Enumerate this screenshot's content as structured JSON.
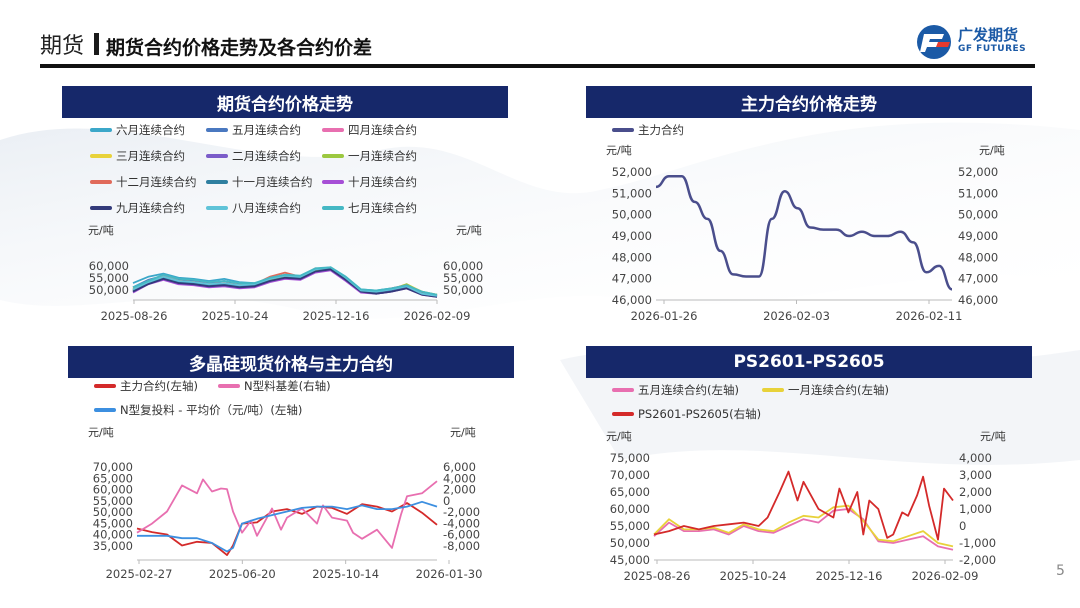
{
  "header": {
    "section": "期货",
    "title": "期货合约价格走势及各合约价差",
    "logo_cn": "广发期货",
    "logo_en": "GF FUTURES"
  },
  "page_number": "5",
  "colors": {
    "navy": "#16286a",
    "logo_blue": "#1b5aa6",
    "logo_red": "#e63a2e"
  },
  "chart_data": [
    {
      "id": "c1",
      "type": "line",
      "title": "期货合约价格走势",
      "ylabel_left": "元/吨",
      "ylabel_right": "元/吨",
      "x_ticks": [
        "2025-08-26",
        "2025-10-24",
        "2025-12-16",
        "2026-02-09"
      ],
      "y_ticks": [
        "60,000",
        "55,000",
        "50,000"
      ],
      "y_ticks_right": [
        "60,000",
        "55,000",
        "50,000"
      ],
      "ylim": [
        46000,
        64000
      ],
      "x": [
        0,
        5,
        10,
        15,
        20,
        25,
        30,
        35,
        40,
        45,
        50,
        55,
        60,
        65,
        70,
        75,
        80,
        85,
        90,
        95,
        100
      ],
      "legend": "top",
      "series": [
        {
          "name": "六月连续合约",
          "color": "#3ba7c9",
          "values": [
            54000,
            57000,
            58500,
            56500,
            56000,
            55000,
            56000,
            54500,
            54000,
            56000,
            57500,
            57000,
            60000,
            61500,
            57000,
            51000,
            50500,
            51500,
            53000,
            50000,
            48500
          ]
        },
        {
          "name": "五月连续合约",
          "color": "#4a78c0",
          "values": [
            52000,
            55500,
            57500,
            55500,
            55000,
            54000,
            55000,
            53500,
            53500,
            55500,
            57000,
            56500,
            59500,
            61000,
            56500,
            50500,
            50000,
            51000,
            52000,
            49000,
            48000
          ]
        },
        {
          "name": "四月连续合约",
          "color": "#e86fb0",
          "values": [
            51000,
            55000,
            57500,
            55000,
            54500,
            53500,
            54000,
            53000,
            53000,
            56000,
            58000,
            56500,
            60500,
            61000,
            56000,
            50000,
            49500,
            50500,
            52500,
            49500,
            48000
          ]
        },
        {
          "name": "三月连续合约",
          "color": "#e8d23a",
          "values": [
            51500,
            55000,
            57000,
            55000,
            54500,
            53000,
            54000,
            53000,
            53500,
            56000,
            57500,
            56000,
            60000,
            61000,
            56000,
            50000,
            49500,
            51000,
            53500,
            50000,
            48500
          ]
        },
        {
          "name": "二月连续合约",
          "color": "#7b5cc9",
          "values": [
            50000,
            54000,
            56000,
            54000,
            53500,
            52500,
            53500,
            52500,
            52500,
            55000,
            57000,
            56000,
            59500,
            60500,
            55500,
            50000,
            49000,
            50000,
            52000,
            49000,
            48000
          ]
        },
        {
          "name": "一月连续合约",
          "color": "#9cc840",
          "values": [
            50500,
            54000,
            56500,
            54500,
            54000,
            53000,
            53500,
            52500,
            53000,
            55500,
            57000,
            56000,
            60000,
            60500,
            55500,
            50000,
            49500,
            51000,
            53500,
            49500,
            48500
          ]
        },
        {
          "name": "十二月连续合约",
          "color": "#e06a5a",
          "values": [
            51000,
            54500,
            57000,
            55000,
            54500,
            53500,
            54000,
            53000,
            53500,
            57000,
            59000,
            57000,
            61000,
            60500,
            55500,
            50500,
            50000,
            51500,
            53000,
            49500,
            48000
          ]
        },
        {
          "name": "十一月连续合约",
          "color": "#2f7fa0",
          "values": [
            50500,
            54000,
            56500,
            54500,
            54000,
            53000,
            53500,
            52500,
            53000,
            56000,
            57500,
            56500,
            60500,
            61000,
            56000,
            50500,
            49500,
            50500,
            52000,
            49000,
            48000
          ]
        },
        {
          "name": "十月连续合约",
          "color": "#a64fd6",
          "values": [
            49500,
            53500,
            55500,
            53500,
            53000,
            52000,
            52500,
            51500,
            52000,
            54500,
            56000,
            55500,
            59000,
            60000,
            55000,
            49500,
            49000,
            50000,
            51500,
            48500,
            47500
          ]
        },
        {
          "name": "九月连续合约",
          "color": "#333a7a",
          "values": [
            50000,
            53500,
            56000,
            54000,
            53500,
            52500,
            53000,
            52000,
            52500,
            55000,
            56500,
            56000,
            59500,
            60500,
            55500,
            50000,
            49000,
            50000,
            51500,
            48500,
            47500
          ]
        },
        {
          "name": "八月连续合约",
          "color": "#5fc3d8",
          "values": [
            51000,
            54500,
            57000,
            55000,
            54500,
            53500,
            54000,
            53000,
            53500,
            56000,
            57500,
            57000,
            60500,
            61500,
            56500,
            50500,
            50000,
            51000,
            52500,
            49000,
            48000
          ]
        },
        {
          "name": "七月连续合约",
          "color": "#45b8c4",
          "values": [
            52000,
            55000,
            58000,
            56000,
            55500,
            54500,
            55000,
            54000,
            54000,
            56500,
            58000,
            57500,
            61000,
            61500,
            57000,
            51000,
            50500,
            51500,
            53000,
            50000,
            48500
          ]
        }
      ]
    },
    {
      "id": "c2",
      "type": "line",
      "title": "主力合约价格走势",
      "ylabel_left": "元/吨",
      "ylabel_right": "元/吨",
      "x_ticks": [
        "2026-01-26",
        "2026-02-03",
        "2026-02-11"
      ],
      "y_ticks": [
        "52,000",
        "51,000",
        "50,000",
        "49,000",
        "48,000",
        "47,000",
        "46,000"
      ],
      "y_ticks_right": [
        "52,000",
        "51,000",
        "50,000",
        "49,000",
        "48,000",
        "47,000",
        "46,000"
      ],
      "ylim": [
        46000,
        52000
      ],
      "legend": "top-left",
      "series": [
        {
          "name": "主力合约",
          "color": "#4a4e8c",
          "x": [
            0,
            1,
            2,
            3,
            4,
            5,
            6,
            7,
            8,
            9,
            10,
            11,
            12,
            13,
            14,
            15,
            16,
            17,
            18,
            19,
            20,
            21,
            22,
            23
          ],
          "values": [
            51300,
            51800,
            51800,
            50600,
            49800,
            48300,
            47200,
            47100,
            47100,
            49800,
            51100,
            50300,
            49400,
            49300,
            49300,
            49000,
            49200,
            49000,
            49000,
            49200,
            48700,
            47300,
            47600,
            46500
          ]
        }
      ]
    },
    {
      "id": "c3",
      "type": "line",
      "title": "多晶硅现货价格与主力合约",
      "ylabel_left": "元/吨",
      "ylabel_right": "元/吨",
      "x_ticks": [
        "2025-02-27",
        "2025-06-20",
        "2025-10-14",
        "2026-01-30"
      ],
      "y_ticks": [
        "70,000",
        "65,000",
        "60,000",
        "55,000",
        "50,000",
        "45,000",
        "40,000",
        "35,000"
      ],
      "y_ticks_right": [
        "6,000",
        "4,000",
        "2,000",
        "0",
        "-2,000",
        "-4,000",
        "-6,000",
        "-8,000"
      ],
      "ylim": [
        31000,
        71000
      ],
      "ylim_right": [
        -9500,
        6500
      ],
      "legend": "top",
      "series": [
        {
          "name": "主力合约(左轴)",
          "color": "#d42a2a",
          "axis": "left",
          "x": [
            0,
            5,
            10,
            15,
            20,
            25,
            30,
            32,
            35,
            40,
            45,
            50,
            55,
            60,
            65,
            70,
            75,
            80,
            85,
            90,
            95,
            100
          ],
          "values": [
            44000,
            42500,
            41500,
            37000,
            38500,
            38000,
            33000,
            37000,
            46000,
            46500,
            51000,
            52000,
            50000,
            53000,
            52500,
            50000,
            54000,
            53000,
            51000,
            54500,
            50500,
            45500
          ]
        },
        {
          "name": "N型料基差(右轴)",
          "color": "#e86fb0",
          "axis": "right",
          "x": [
            0,
            5,
            10,
            15,
            20,
            22,
            25,
            28,
            30,
            32,
            35,
            38,
            40,
            45,
            48,
            50,
            55,
            60,
            62,
            65,
            70,
            72,
            75,
            80,
            85,
            88,
            90,
            95,
            100
          ],
          "values": [
            -5000,
            -3500,
            -1500,
            2800,
            1500,
            3800,
            1800,
            2300,
            2200,
            -1500,
            -5000,
            -3000,
            -5500,
            -1000,
            -4500,
            -2500,
            -1000,
            -3500,
            -500,
            -2500,
            -3000,
            -5000,
            -6000,
            -4500,
            -7500,
            -2000,
            1000,
            1500,
            3500
          ]
        },
        {
          "name": "N型复投料 - 平均价（元/吨）(左轴)",
          "color": "#3c8fe0",
          "axis": "left",
          "x": [
            0,
            10,
            15,
            20,
            25,
            30,
            32,
            35,
            40,
            45,
            50,
            55,
            60,
            65,
            70,
            75,
            80,
            85,
            90,
            95,
            100
          ],
          "values": [
            41000,
            41000,
            40000,
            40000,
            38000,
            34500,
            36000,
            46000,
            48000,
            49500,
            51000,
            52500,
            53000,
            53000,
            52000,
            53500,
            52000,
            52000,
            53000,
            55000,
            53000
          ]
        }
      ]
    },
    {
      "id": "c4",
      "type": "line",
      "title": "PS2601-PS2605",
      "ylabel_left": "元/吨",
      "ylabel_right": "元/吨",
      "x_ticks": [
        "2025-08-26",
        "2025-10-24",
        "2025-12-16",
        "2026-02-09"
      ],
      "y_ticks": [
        "75,000",
        "70,000",
        "65,000",
        "60,000",
        "55,000",
        "50,000",
        "45,000"
      ],
      "y_ticks_right": [
        "4,000",
        "3,000",
        "2,000",
        "1,000",
        "0",
        "-1,000",
        "-2,000"
      ],
      "ylim": [
        45000,
        75000
      ],
      "ylim_right": [
        -2000,
        4000
      ],
      "legend": "top",
      "series": [
        {
          "name": "五月连续合约(左轴)",
          "color": "#e86fb0",
          "axis": "left",
          "x": [
            0,
            5,
            10,
            15,
            20,
            25,
            30,
            35,
            40,
            45,
            50,
            55,
            60,
            65,
            70,
            75,
            80,
            85,
            90,
            95,
            100
          ],
          "values": [
            52000,
            56000,
            53500,
            53500,
            54000,
            52500,
            55000,
            53500,
            53000,
            55000,
            57000,
            56000,
            59500,
            60000,
            57000,
            50500,
            50000,
            51000,
            52000,
            49000,
            48000
          ]
        },
        {
          "name": "一月连续合约(左轴)",
          "color": "#e8d23a",
          "axis": "left",
          "x": [
            0,
            5,
            10,
            15,
            20,
            25,
            30,
            35,
            40,
            45,
            50,
            55,
            60,
            65,
            70,
            75,
            80,
            85,
            90,
            95,
            100
          ],
          "values": [
            52500,
            57000,
            54000,
            54000,
            54500,
            53000,
            55500,
            54000,
            53500,
            56000,
            58000,
            57500,
            60500,
            61000,
            56500,
            51000,
            50500,
            52000,
            53500,
            50000,
            49000
          ]
        },
        {
          "name": "PS2601-PS2605(右轴)",
          "color": "#d42a2a",
          "axis": "right",
          "x": [
            0,
            5,
            10,
            15,
            20,
            25,
            30,
            35,
            38,
            42,
            45,
            48,
            50,
            55,
            60,
            62,
            65,
            68,
            70,
            72,
            75,
            78,
            80,
            83,
            85,
            88,
            90,
            92,
            95,
            97,
            100
          ],
          "values": [
            -500,
            -300,
            0,
            -200,
            0,
            100,
            200,
            0,
            500,
            2000,
            3200,
            1500,
            2600,
            1000,
            500,
            2200,
            800,
            2000,
            -500,
            1500,
            1000,
            -700,
            -500,
            800,
            600,
            1800,
            2900,
            1200,
            -800,
            2200,
            1500
          ]
        }
      ]
    }
  ]
}
